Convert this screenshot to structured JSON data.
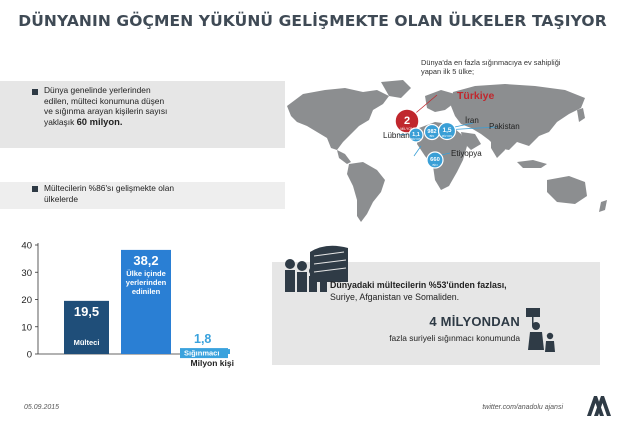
{
  "title": "DÜNYANIN GÖÇMEN YÜKÜNÜ GELİŞMEKTE OLAN ÜLKELER TAŞIYOR",
  "map_intro": [
    "Dünya'da en fazla sığınmacıya ev sahipliği",
    "yapan ilk 5 ülke;"
  ],
  "panel1": {
    "lines": [
      "Dünya genelinde yerlerinden",
      "edilen, mülteci konumuna düşen",
      "ve sığınma arayan kişilerin sayısı"
    ],
    "last_prefix": "yaklaşık ",
    "last_bold": "60 milyon."
  },
  "panel2": {
    "lines": [
      "Mültecilerin %86'sı gelişmekte olan",
      "ülkelerde"
    ]
  },
  "map": {
    "countries": [
      "Türkiye",
      "İran",
      "Pakistan",
      "Lübnan",
      "Etiyopya"
    ],
    "bubbles": [
      {
        "value": "2",
        "unit": "MİLYON",
        "color": "#c0272d"
      },
      {
        "value": "1,1",
        "unit": "MİLYON",
        "color": "#3a9fd6"
      },
      {
        "value": "982",
        "unit": "BİN",
        "color": "#3a9fd6"
      },
      {
        "value": "1,5",
        "unit": "MİLYON",
        "color": "#3a9fd6"
      },
      {
        "value": "660",
        "unit": "BİN",
        "color": "#3a9fd6"
      }
    ]
  },
  "chart_data": {
    "type": "bar",
    "categories": [
      "Mülteci",
      "Ülke içinde yerlerinden edinilen",
      "Sığınmacı"
    ],
    "category_lines": [
      [
        "Mülteci"
      ],
      [
        "Ülke içinde",
        "yerlerinden",
        "edinilen"
      ],
      [
        "Sığınmacı"
      ]
    ],
    "values": [
      19.5,
      38.2,
      1.8
    ],
    "value_labels": [
      "19,5",
      "38,2",
      "1,8"
    ],
    "colors": [
      "#1f4e79",
      "#2a7fd4",
      "#3aa2dd"
    ],
    "ylim": [
      0,
      40
    ],
    "yticks": [
      0,
      10,
      20,
      30,
      40
    ],
    "xlabel": "Milyon kişi",
    "ylabel": ""
  },
  "refugee": {
    "line1_bold": "Dünyadaki mültecilerin %53'ünden fazlası,",
    "line2": "Suriye, Afganistan ve Somaliden.",
    "big": "4 MİLYONDAN",
    "sub": "fazla suriyeli sığınmacı konumunda"
  },
  "footer": {
    "date": "05.09.2015",
    "twitter": "twitter.com/anadolu ajansi",
    "logo_icon": "aa-logo-icon"
  }
}
